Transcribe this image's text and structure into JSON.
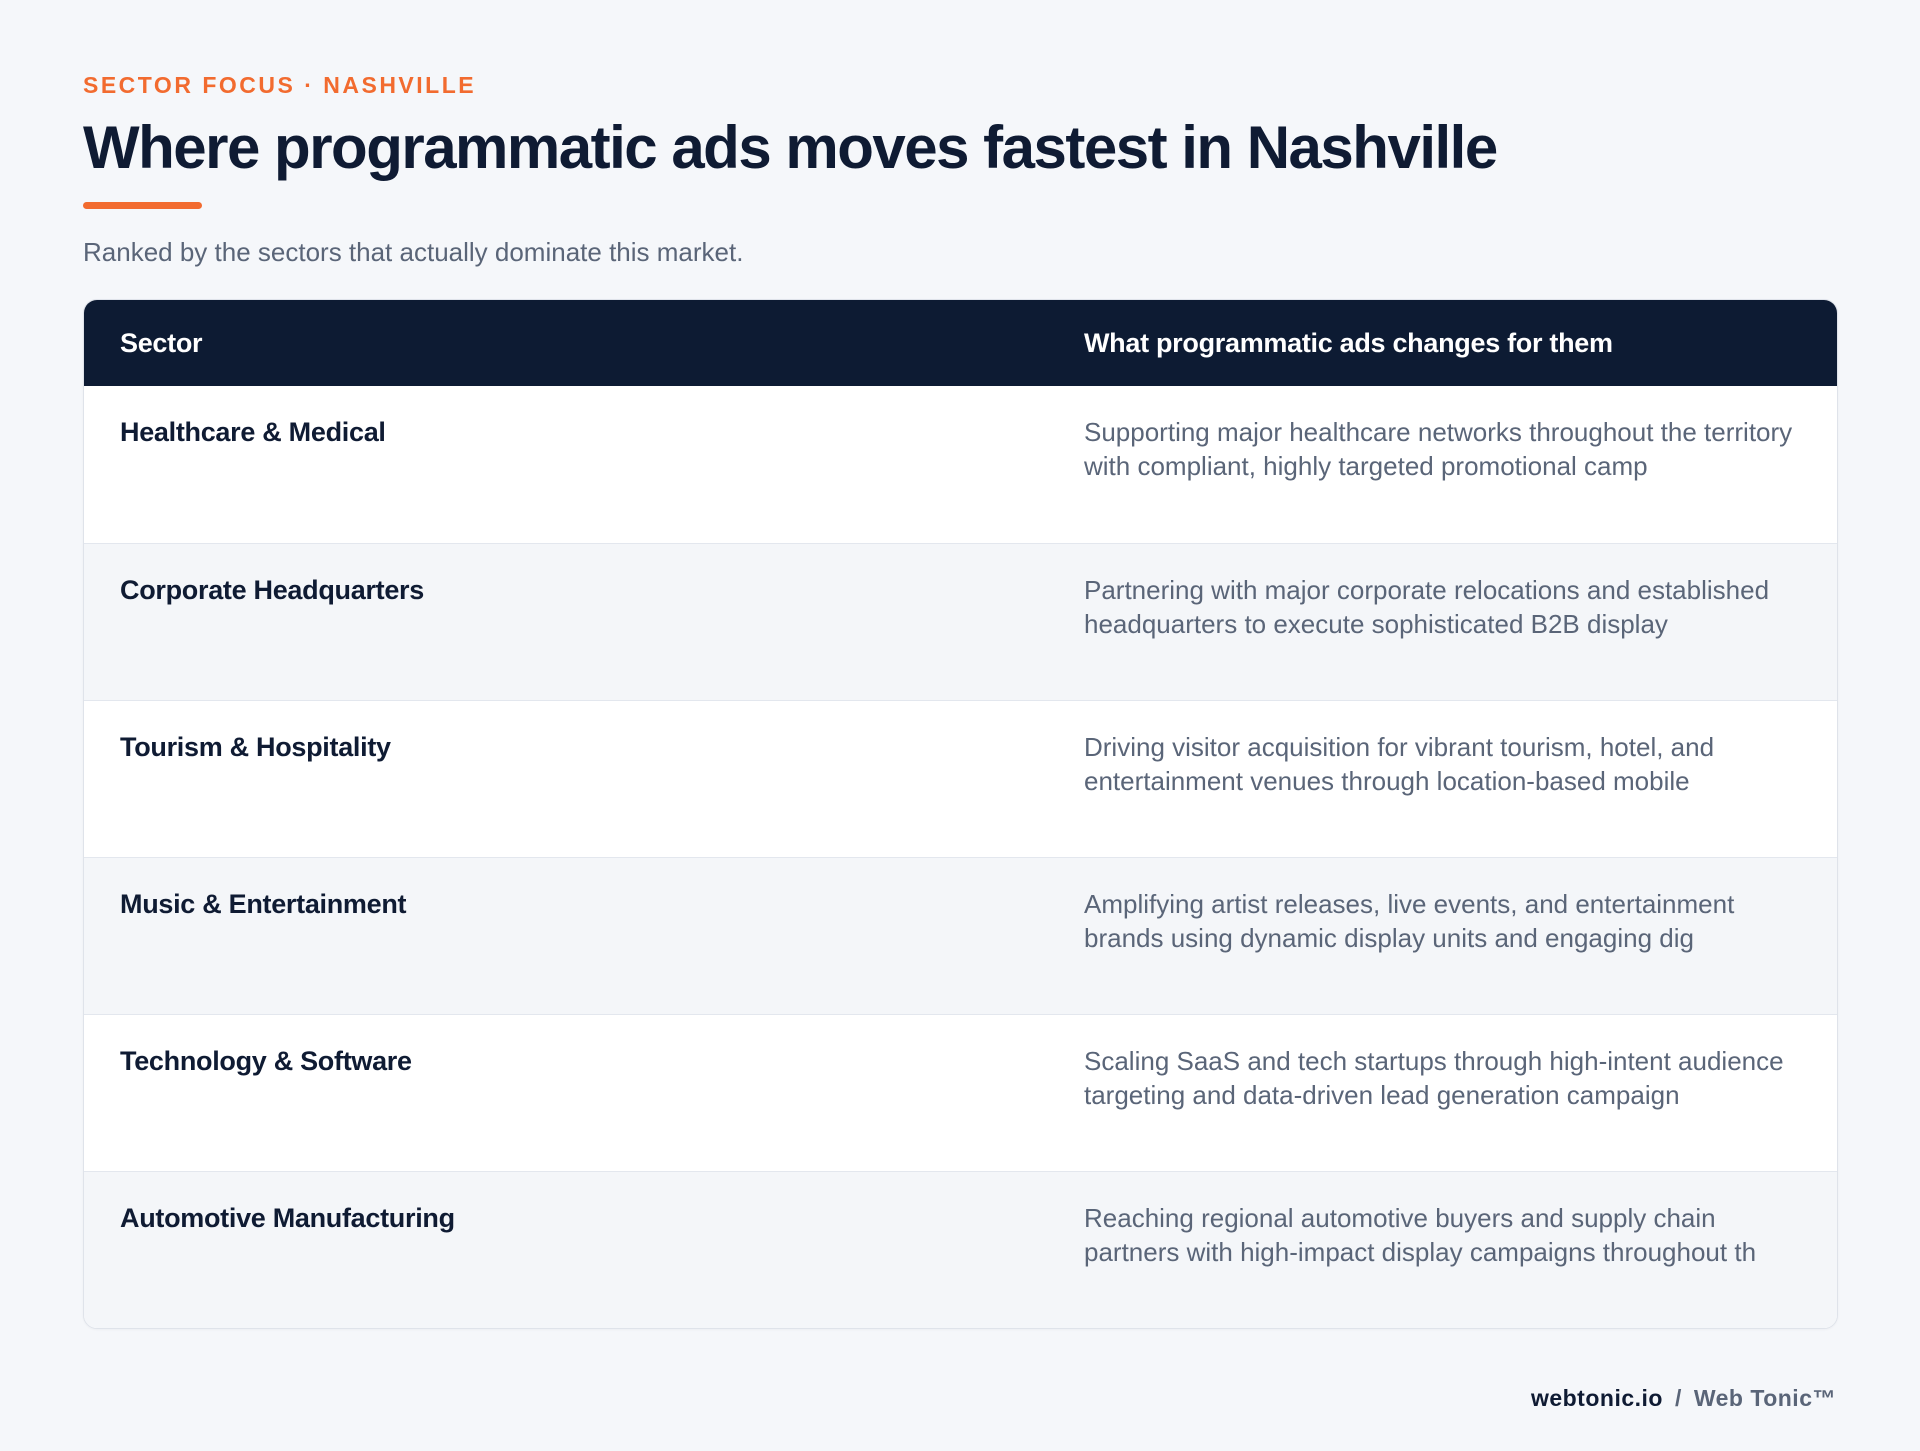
{
  "header": {
    "eyebrow": "SECTOR FOCUS · NASHVILLE",
    "title": "Where programmatic ads moves fastest in Nashville",
    "subtitle": "Ranked by the sectors that actually dominate this market."
  },
  "table": {
    "columns": [
      "Sector",
      "What programmatic ads changes for them"
    ],
    "rows": [
      {
        "sector": "Healthcare & Medical",
        "description": "Supporting major healthcare networks throughout the territory with compliant, highly targeted promotional camp"
      },
      {
        "sector": "Corporate Headquarters",
        "description": "Partnering with major corporate relocations and established headquarters to execute sophisticated B2B display"
      },
      {
        "sector": "Tourism & Hospitality",
        "description": "Driving visitor acquisition for vibrant tourism, hotel, and entertainment venues through location-based mobile"
      },
      {
        "sector": "Music & Entertainment",
        "description": "Amplifying artist releases, live events, and entertainment brands using dynamic display units and engaging dig"
      },
      {
        "sector": "Technology & Software",
        "description": "Scaling SaaS and tech startups through high-intent audience targeting and data-driven lead generation campaign"
      },
      {
        "sector": "Automotive Manufacturing",
        "description": "Reaching regional automotive buyers and supply chain partners with high-impact display campaigns throughout th"
      }
    ]
  },
  "footer": {
    "domain": "webtonic.io",
    "separator": "/",
    "brand": "Web Tonic™"
  },
  "colors": {
    "accent": "#f26b2f",
    "navy": "#0d1b33",
    "muted_text": "#5a6578",
    "background": "#f5f7fa"
  }
}
